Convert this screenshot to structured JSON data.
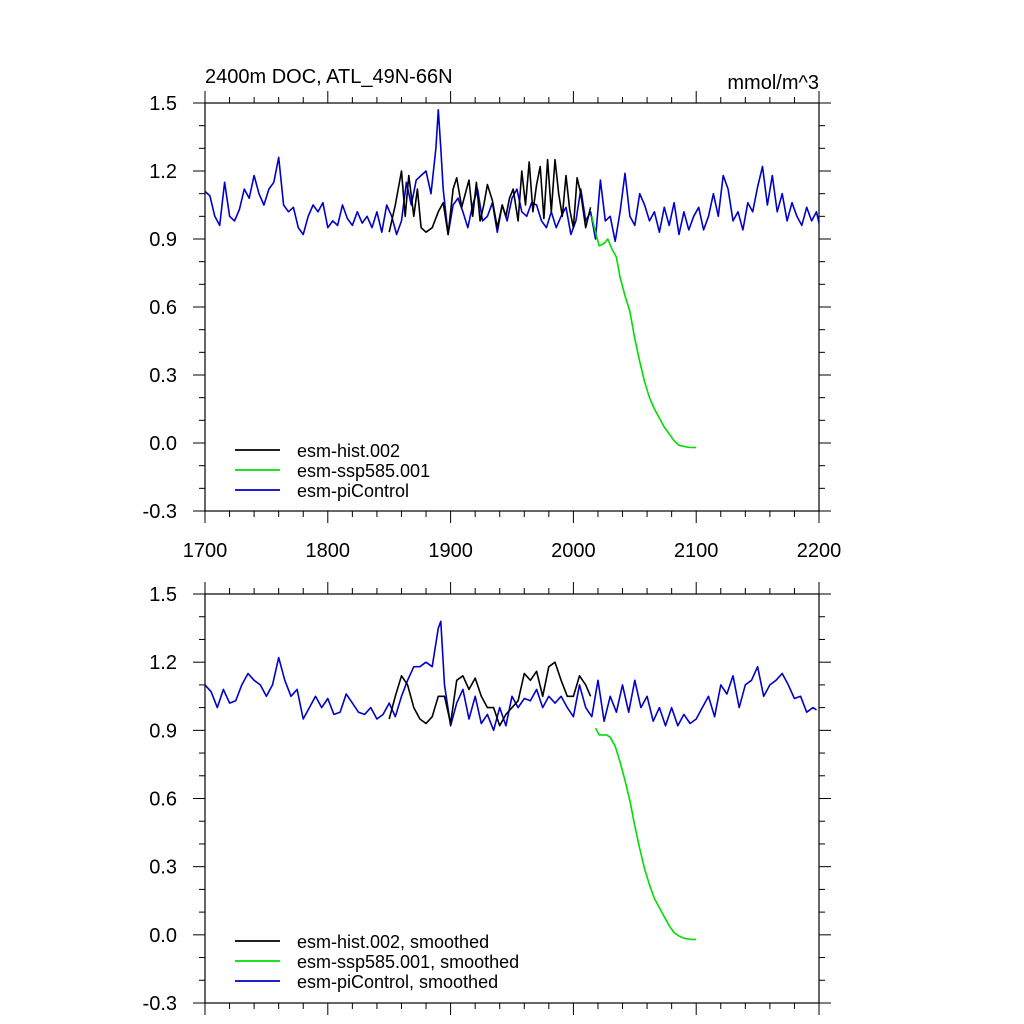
{
  "chart_data": [
    {
      "type": "line",
      "title": "2400m DOC, ATL_49N-66N",
      "units": "mmol/m^3",
      "xlim": [
        1700,
        2200
      ],
      "ylim": [
        -0.3,
        1.5
      ],
      "x_ticks": [
        1700,
        1800,
        1900,
        2000,
        2100,
        2200
      ],
      "x_tick_labels": [
        "1700",
        "1800",
        "1900",
        "2000",
        "2100",
        "2200"
      ],
      "y_ticks": [
        -0.3,
        0.0,
        0.3,
        0.6,
        0.9,
        1.2,
        1.5
      ],
      "y_tick_labels": [
        "-0.3",
        "0.0",
        "0.3",
        "0.6",
        "0.9",
        "1.2",
        "1.5"
      ],
      "grid": false,
      "legend_position": "bottom-left",
      "series": [
        {
          "name": "esm-hist.002",
          "color": "#000000",
          "x": [
            1850,
            1855,
            1860,
            1863,
            1866,
            1870,
            1873,
            1876,
            1880,
            1885,
            1890,
            1894,
            1898,
            1902,
            1905,
            1909,
            1912,
            1915,
            1918,
            1921,
            1924,
            1927,
            1930,
            1934,
            1938,
            1942,
            1945,
            1948,
            1951,
            1955,
            1958,
            1961,
            1964,
            1967,
            1970,
            1973,
            1976,
            1979,
            1982,
            1985,
            1988,
            1991,
            1994,
            1997,
            2000,
            2003,
            2006,
            2010,
            2014
          ],
          "y": [
            0.93,
            1.05,
            1.2,
            1.0,
            1.18,
            1.0,
            1.12,
            0.95,
            0.93,
            0.95,
            1.02,
            1.06,
            0.92,
            1.12,
            1.17,
            1.04,
            1.1,
            1.16,
            1.0,
            1.15,
            0.98,
            1.05,
            1.14,
            1.07,
            0.95,
            1.05,
            1.0,
            1.08,
            1.12,
            0.98,
            1.2,
            1.05,
            1.24,
            1.02,
            1.14,
            1.22,
            0.99,
            1.25,
            1.02,
            1.25,
            1.1,
            1.0,
            1.18,
            1.03,
            0.95,
            1.17,
            1.1,
            0.95,
            1.04
          ]
        },
        {
          "name": "esm-ssp585.001",
          "color": "#00dd00",
          "x": [
            2015,
            2018,
            2021,
            2025,
            2028,
            2031,
            2035,
            2038,
            2042,
            2046,
            2050,
            2054,
            2058,
            2062,
            2066,
            2070,
            2074,
            2078,
            2082,
            2086,
            2090,
            2095,
            2100
          ],
          "y": [
            1.0,
            0.93,
            0.87,
            0.88,
            0.9,
            0.86,
            0.82,
            0.73,
            0.65,
            0.58,
            0.46,
            0.36,
            0.27,
            0.2,
            0.15,
            0.11,
            0.07,
            0.04,
            0.01,
            -0.01,
            -0.015,
            -0.02,
            -0.02
          ]
        },
        {
          "name": "esm-piControl",
          "color": "#0000cc",
          "x": [
            1700,
            1704,
            1708,
            1712,
            1716,
            1720,
            1724,
            1728,
            1732,
            1736,
            1740,
            1744,
            1748,
            1752,
            1756,
            1760,
            1764,
            1768,
            1772,
            1776,
            1780,
            1784,
            1788,
            1792,
            1796,
            1800,
            1804,
            1808,
            1812,
            1816,
            1820,
            1824,
            1828,
            1832,
            1836,
            1840,
            1844,
            1848,
            1852,
            1856,
            1860,
            1864,
            1868,
            1872,
            1876,
            1880,
            1884,
            1888,
            1890,
            1892,
            1894,
            1898,
            1902,
            1906,
            1910,
            1914,
            1918,
            1922,
            1926,
            1930,
            1934,
            1938,
            1942,
            1946,
            1950,
            1954,
            1958,
            1962,
            1966,
            1970,
            1974,
            1978,
            1982,
            1986,
            1990,
            1994,
            1998,
            2002,
            2006,
            2010,
            2014,
            2018,
            2022,
            2026,
            2030,
            2034,
            2038,
            2042,
            2046,
            2050,
            2054,
            2058,
            2062,
            2066,
            2070,
            2074,
            2078,
            2082,
            2086,
            2090,
            2094,
            2098,
            2102,
            2106,
            2110,
            2114,
            2118,
            2122,
            2126,
            2130,
            2134,
            2138,
            2142,
            2146,
            2150,
            2154,
            2158,
            2162,
            2166,
            2170,
            2174,
            2178,
            2182,
            2186,
            2190,
            2194,
            2198,
            2200
          ],
          "y": [
            1.11,
            1.09,
            1.0,
            0.96,
            1.15,
            1.0,
            0.98,
            1.03,
            1.12,
            1.08,
            1.18,
            1.1,
            1.05,
            1.12,
            1.15,
            1.26,
            1.05,
            1.02,
            1.04,
            0.95,
            0.92,
            1.0,
            1.05,
            1.02,
            1.06,
            0.95,
            0.98,
            0.96,
            1.05,
            0.99,
            0.96,
            1.02,
            0.97,
            1.0,
            0.95,
            1.02,
            0.93,
            1.05,
            1.0,
            0.92,
            0.98,
            1.15,
            1.05,
            1.16,
            1.18,
            1.2,
            1.1,
            1.3,
            1.47,
            1.3,
            1.12,
            0.92,
            1.05,
            1.08,
            1.02,
            0.95,
            1.05,
            1.12,
            0.98,
            1.0,
            1.06,
            0.93,
            1.05,
            0.98,
            1.08,
            1.12,
            1.02,
            1.0,
            1.06,
            1.05,
            0.98,
            0.95,
            1.02,
            0.95,
            1.0,
            1.04,
            0.92,
            0.98,
            1.12,
            0.98,
            1.02,
            0.9,
            1.16,
            0.98,
            1.0,
            0.89,
            1.02,
            1.19,
            1.0,
            0.96,
            1.1,
            1.05,
            0.98,
            1.02,
            0.93,
            1.04,
            0.96,
            1.06,
            0.92,
            1.02,
            0.94,
            1.0,
            1.04,
            0.94,
            1.0,
            1.1,
            1.0,
            1.18,
            1.12,
            0.98,
            1.02,
            0.94,
            1.06,
            1.02,
            1.13,
            1.22,
            1.05,
            1.18,
            1.02,
            1.1,
            0.98,
            1.06,
            1.0,
            0.96,
            1.04,
            0.98,
            1.02,
            0.97
          ]
        }
      ]
    },
    {
      "type": "line",
      "title": "",
      "xlim": [
        1700,
        2200
      ],
      "ylim": [
        -0.3,
        1.5
      ],
      "x_ticks": [
        1700,
        1800,
        1900,
        2000,
        2100,
        2200
      ],
      "y_ticks": [
        -0.3,
        0.0,
        0.3,
        0.6,
        0.9,
        1.2,
        1.5
      ],
      "y_tick_labels": [
        "-0.3",
        "0.0",
        "0.3",
        "0.6",
        "0.9",
        "1.2",
        "1.5"
      ],
      "grid": false,
      "legend_position": "bottom-left",
      "series": [
        {
          "name": "esm-hist.002, smoothed",
          "color": "#000000",
          "x": [
            1850,
            1855,
            1860,
            1865,
            1870,
            1875,
            1880,
            1885,
            1890,
            1895,
            1900,
            1905,
            1910,
            1915,
            1920,
            1925,
            1930,
            1935,
            1940,
            1945,
            1950,
            1955,
            1960,
            1965,
            1970,
            1975,
            1980,
            1985,
            1990,
            1995,
            2000,
            2005,
            2010,
            2014
          ],
          "y": [
            0.95,
            1.05,
            1.14,
            1.1,
            1.0,
            0.95,
            0.93,
            0.96,
            1.05,
            1.05,
            0.93,
            1.12,
            1.14,
            1.08,
            1.13,
            1.05,
            1.0,
            1.0,
            0.92,
            0.97,
            1.0,
            1.03,
            1.15,
            1.12,
            1.16,
            1.05,
            1.18,
            1.2,
            1.12,
            1.05,
            1.05,
            1.14,
            1.1,
            1.05
          ]
        },
        {
          "name": "esm-ssp585.001, smoothed",
          "color": "#00dd00",
          "x": [
            2018,
            2021,
            2024,
            2027,
            2030,
            2034,
            2038,
            2042,
            2046,
            2050,
            2054,
            2058,
            2062,
            2066,
            2070,
            2074,
            2078,
            2082,
            2086,
            2090,
            2095,
            2100
          ],
          "y": [
            0.91,
            0.88,
            0.88,
            0.88,
            0.87,
            0.83,
            0.76,
            0.68,
            0.59,
            0.48,
            0.38,
            0.29,
            0.22,
            0.16,
            0.12,
            0.08,
            0.04,
            0.01,
            -0.005,
            -0.015,
            -0.02,
            -0.02
          ]
        },
        {
          "name": "esm-piControl, smoothed",
          "color": "#0000cc",
          "x": [
            1700,
            1705,
            1710,
            1715,
            1720,
            1725,
            1730,
            1735,
            1740,
            1745,
            1750,
            1755,
            1760,
            1765,
            1770,
            1775,
            1780,
            1785,
            1790,
            1795,
            1800,
            1805,
            1810,
            1815,
            1820,
            1825,
            1830,
            1835,
            1840,
            1845,
            1850,
            1855,
            1860,
            1865,
            1870,
            1875,
            1880,
            1885,
            1890,
            1892,
            1895,
            1900,
            1905,
            1910,
            1915,
            1920,
            1925,
            1930,
            1935,
            1940,
            1945,
            1950,
            1955,
            1960,
            1965,
            1970,
            1975,
            1980,
            1985,
            1990,
            1995,
            2000,
            2005,
            2010,
            2015,
            2020,
            2025,
            2030,
            2035,
            2040,
            2045,
            2050,
            2055,
            2060,
            2065,
            2070,
            2075,
            2080,
            2085,
            2090,
            2095,
            2100,
            2105,
            2110,
            2115,
            2120,
            2125,
            2130,
            2135,
            2140,
            2145,
            2150,
            2155,
            2160,
            2165,
            2170,
            2175,
            2180,
            2185,
            2190,
            2195,
            2198
          ],
          "y": [
            1.1,
            1.07,
            1.0,
            1.08,
            1.02,
            1.03,
            1.1,
            1.15,
            1.12,
            1.1,
            1.05,
            1.1,
            1.22,
            1.12,
            1.05,
            1.08,
            0.95,
            1.0,
            1.05,
            1.0,
            1.04,
            0.97,
            0.98,
            1.06,
            1.02,
            0.98,
            0.97,
            1.0,
            0.95,
            0.97,
            1.02,
            0.96,
            1.05,
            1.12,
            1.18,
            1.18,
            1.2,
            1.18,
            1.35,
            1.38,
            1.1,
            0.92,
            1.02,
            1.08,
            0.95,
            1.05,
            0.93,
            0.97,
            0.9,
            1.0,
            0.92,
            1.05,
            1.0,
            1.04,
            1.03,
            1.08,
            1.0,
            1.05,
            1.02,
            1.05,
            1.0,
            0.96,
            1.1,
            1.0,
            0.96,
            1.12,
            0.94,
            1.05,
            0.98,
            1.1,
            0.98,
            1.12,
            1.0,
            1.05,
            0.94,
            1.0,
            0.92,
            1.0,
            0.92,
            0.97,
            0.93,
            0.95,
            1.0,
            1.05,
            0.96,
            1.1,
            1.06,
            1.14,
            1.0,
            1.1,
            1.12,
            1.18,
            1.05,
            1.1,
            1.12,
            1.15,
            1.1,
            1.04,
            1.05,
            0.98,
            1.0,
            0.99
          ]
        }
      ]
    }
  ]
}
